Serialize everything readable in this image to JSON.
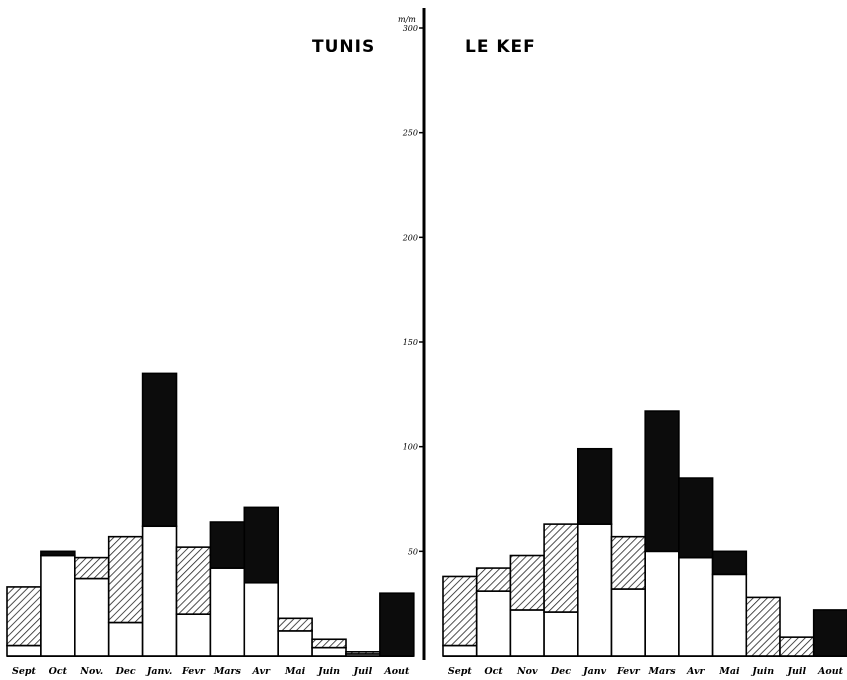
{
  "chart_data": {
    "type": "bar",
    "stacked": true,
    "title": "",
    "ylabel": "m/m",
    "ylim": [
      0,
      300
    ],
    "yticks": [
      50,
      100,
      150,
      200,
      250,
      300
    ],
    "yticks_labels": [
      "50",
      "100",
      "150",
      "200",
      "250",
      "300"
    ],
    "segment_colors": {
      "white": "#ffffff",
      "hatched": "#c8c8c8",
      "black": "#0c0c0c"
    },
    "legend": "none",
    "grid": false,
    "panels": [
      {
        "station": "TUNIS",
        "categories": [
          "Sept",
          "Oct",
          "Nov.",
          "Dec",
          "Janv.",
          "Fevr",
          "Mars",
          "Avr",
          "Mai",
          "Juin",
          "Juil",
          "Aout"
        ],
        "segments": [
          [
            {
              "style": "white",
              "value": 5
            },
            {
              "style": "hatched",
              "value": 28
            }
          ],
          [
            {
              "style": "white",
              "value": 48
            },
            {
              "style": "black",
              "value": 2
            }
          ],
          [
            {
              "style": "white",
              "value": 37
            },
            {
              "style": "hatched",
              "value": 10
            }
          ],
          [
            {
              "style": "white",
              "value": 16
            },
            {
              "style": "hatched",
              "value": 41
            }
          ],
          [
            {
              "style": "white",
              "value": 62
            },
            {
              "style": "black",
              "value": 73
            }
          ],
          [
            {
              "style": "white",
              "value": 20
            },
            {
              "style": "hatched",
              "value": 32
            }
          ],
          [
            {
              "style": "white",
              "value": 42
            },
            {
              "style": "black",
              "value": 22
            }
          ],
          [
            {
              "style": "white",
              "value": 35
            },
            {
              "style": "black",
              "value": 36
            }
          ],
          [
            {
              "style": "white",
              "value": 12
            },
            {
              "style": "hatched",
              "value": 6
            }
          ],
          [
            {
              "style": "white",
              "value": 4
            },
            {
              "style": "hatched",
              "value": 4
            }
          ],
          [
            {
              "style": "white",
              "value": 1
            },
            {
              "style": "hatched",
              "value": 1
            }
          ],
          [
            {
              "style": "white",
              "value": 0
            },
            {
              "style": "black",
              "value": 30
            }
          ]
        ]
      },
      {
        "station": "LE  KEF",
        "categories": [
          "Sept",
          "Oct",
          "Nov",
          "Dec",
          "Janv",
          "Fevr",
          "Mars",
          "Avr",
          "Mai",
          "Juin",
          "Juil",
          "Aout"
        ],
        "segments": [
          [
            {
              "style": "white",
              "value": 5
            },
            {
              "style": "hatched",
              "value": 33
            }
          ],
          [
            {
              "style": "white",
              "value": 31
            },
            {
              "style": "hatched",
              "value": 11
            }
          ],
          [
            {
              "style": "white",
              "value": 22
            },
            {
              "style": "hatched",
              "value": 26
            }
          ],
          [
            {
              "style": "white",
              "value": 21
            },
            {
              "style": "hatched",
              "value": 42
            }
          ],
          [
            {
              "style": "white",
              "value": 63
            },
            {
              "style": "black",
              "value": 36
            }
          ],
          [
            {
              "style": "white",
              "value": 32
            },
            {
              "style": "hatched",
              "value": 25
            }
          ],
          [
            {
              "style": "white",
              "value": 50
            },
            {
              "style": "black",
              "value": 67
            }
          ],
          [
            {
              "style": "white",
              "value": 47
            },
            {
              "style": "black",
              "value": 38
            }
          ],
          [
            {
              "style": "white",
              "value": 39
            },
            {
              "style": "black",
              "value": 11
            }
          ],
          [
            {
              "style": "white",
              "value": 0
            },
            {
              "style": "hatched",
              "value": 28
            }
          ],
          [
            {
              "style": "white",
              "value": 0
            },
            {
              "style": "hatched",
              "value": 9
            }
          ],
          [
            {
              "style": "white",
              "value": 0
            },
            {
              "style": "black",
              "value": 22
            }
          ]
        ]
      }
    ]
  }
}
